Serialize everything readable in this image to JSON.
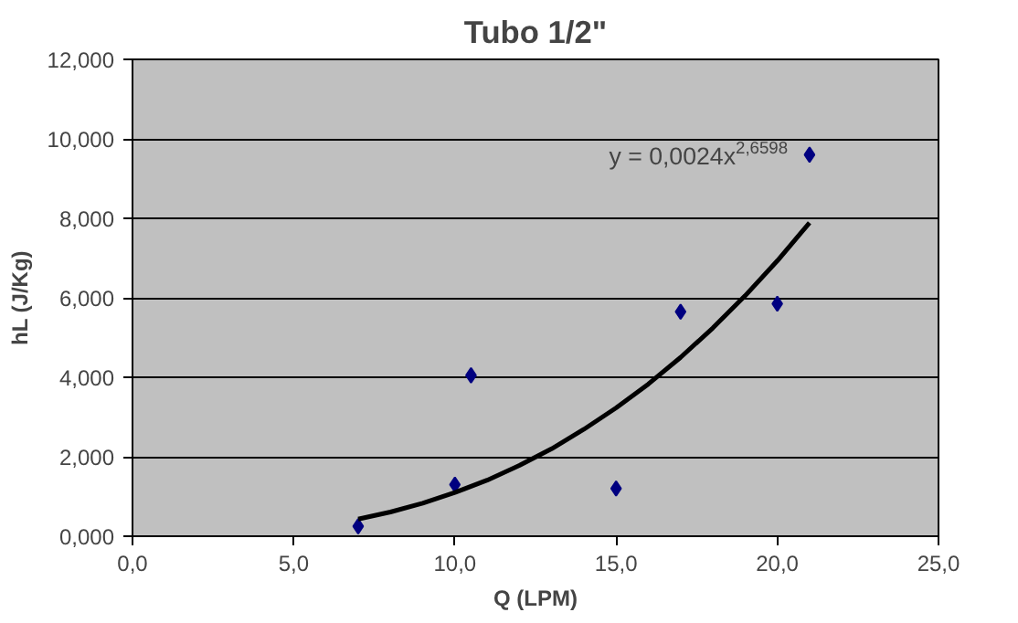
{
  "chart_data": {
    "type": "scatter",
    "title": "Tubo 1/2\"",
    "xlabel": "Q (LPM)",
    "ylabel": "hL (J/Kg)",
    "xlim": [
      0,
      25
    ],
    "ylim": [
      0,
      12
    ],
    "xticks": [
      {
        "value": 0,
        "label": "0,0"
      },
      {
        "value": 5,
        "label": "5,0"
      },
      {
        "value": 10,
        "label": "10,0"
      },
      {
        "value": 15,
        "label": "15,0"
      },
      {
        "value": 20,
        "label": "20,0"
      },
      {
        "value": 25,
        "label": "25,0"
      }
    ],
    "yticks": [
      {
        "value": 0,
        "label": "0,000"
      },
      {
        "value": 2,
        "label": "2,000"
      },
      {
        "value": 4,
        "label": "4,000"
      },
      {
        "value": 6,
        "label": "6,000"
      },
      {
        "value": 8,
        "label": "8,000"
      },
      {
        "value": 10,
        "label": "10,000"
      },
      {
        "value": 12,
        "label": "12,000"
      }
    ],
    "grid": "y",
    "series": [
      {
        "color": "#000080",
        "marker": "diamond",
        "x": [
          7,
          10,
          10.5,
          15,
          17,
          20,
          21
        ],
        "values": [
          0.25,
          1.3,
          4.05,
          1.2,
          5.65,
          5.85,
          9.6
        ]
      },
      {
        "type": "line",
        "color": "#000000",
        "marker": "none",
        "line_style": "solid",
        "x": [
          7,
          8,
          9,
          10,
          11,
          12,
          13,
          14,
          15,
          16,
          17,
          18,
          19,
          20,
          21
        ],
        "values": [
          0.43,
          0.61,
          0.83,
          1.1,
          1.41,
          1.78,
          2.2,
          2.69,
          3.23,
          3.83,
          4.5,
          5.24,
          6.05,
          6.93,
          7.89
        ]
      }
    ],
    "annotations": [
      "y = 0,0024x$^{2,6598}$"
    ]
  }
}
